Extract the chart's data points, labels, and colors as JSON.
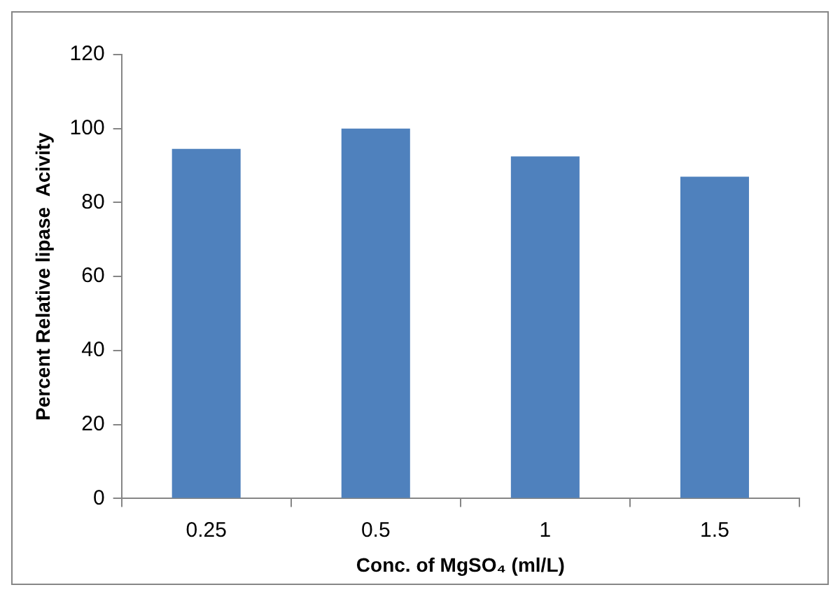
{
  "chart_data": {
    "type": "bar",
    "xlabel": "Conc. of MgSO₄ (ml/L)",
    "ylabel": "Percent Relative lipase  Acivity",
    "categories": [
      "0.25",
      "0.5",
      "1",
      "1.5"
    ],
    "values": [
      94.5,
      100,
      92.5,
      87
    ],
    "color": "#4f81bd",
    "ylim": [
      0,
      120
    ],
    "yticks": [
      0,
      20,
      40,
      60,
      80,
      100,
      120
    ],
    "grid": false,
    "legend": false
  }
}
